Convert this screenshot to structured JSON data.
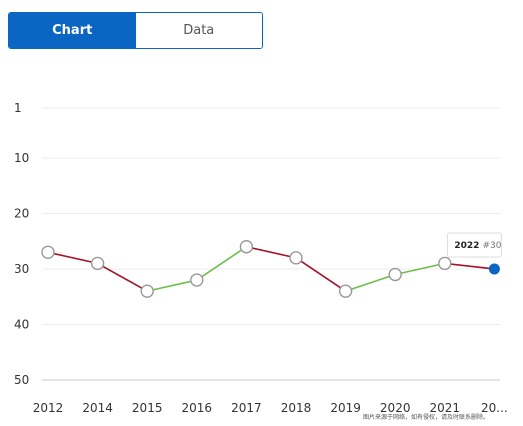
{
  "tabs": [
    {
      "label": "Chart",
      "active": true
    },
    {
      "label": "Data",
      "active": false
    }
  ],
  "chart_data": {
    "type": "line",
    "categories": [
      "2012",
      "2014",
      "2015",
      "2016",
      "2017",
      "2018",
      "2019",
      "2020",
      "2021",
      "20..."
    ],
    "values": [
      27,
      29,
      34,
      32,
      26,
      28,
      34,
      31,
      29,
      30
    ],
    "y_ticks": [
      1,
      10,
      20,
      30,
      40,
      50
    ],
    "ylim": [
      1,
      50
    ],
    "y_inverted": true,
    "grid": true,
    "colors": {
      "up": "#6abf4b",
      "down": "#a3122a",
      "marker_fill": "#ffffff",
      "marker_stroke": "#999999",
      "highlight": "#0a66c2"
    },
    "tooltip": {
      "bold": "2022",
      "rest": "#30",
      "point_index": 9
    }
  },
  "watermark": "图片来源于网络，如有侵权，请及时联系删除。"
}
